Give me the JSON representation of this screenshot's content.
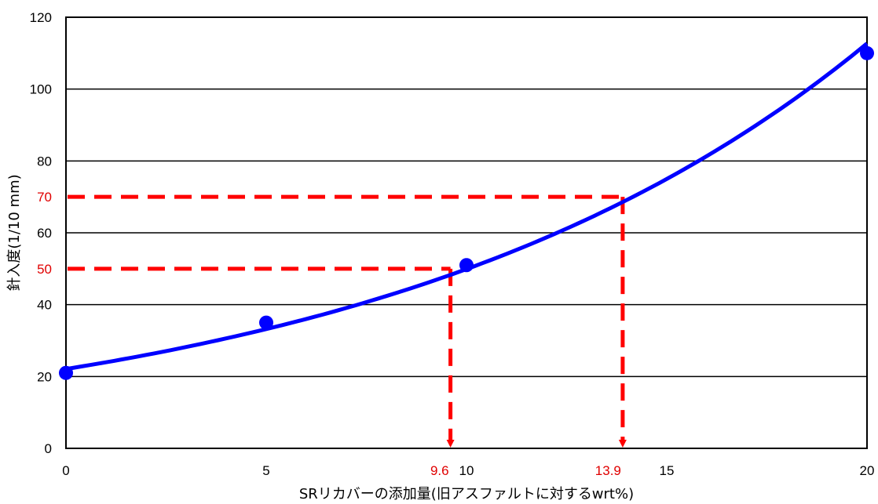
{
  "chart_data": {
    "type": "scatter",
    "title": "",
    "xlabel": "SRリカバーの添加量(旧アスファルトに対するwrt%)",
    "ylabel": "針入度(1/10 mm)",
    "xlim": [
      0,
      20
    ],
    "ylim": [
      0,
      120
    ],
    "x_ticks": [
      "0",
      "5",
      "10",
      "15",
      "20"
    ],
    "y_ticks": [
      "0",
      "20",
      "40",
      "60",
      "80",
      "100",
      "120"
    ],
    "grid": "horizontal",
    "series": [
      {
        "marker": "circle",
        "color": "#0000ff",
        "points": [
          {
            "x": 0,
            "y": 21
          },
          {
            "x": 5,
            "y": 35
          },
          {
            "x": 10,
            "y": 51
          },
          {
            "x": 20,
            "y": 110
          }
        ]
      }
    ],
    "trendline": {
      "type": "exponential",
      "color": "#0000ff"
    },
    "annotations": [
      {
        "y": 50,
        "x": 9.6,
        "y_label": "50",
        "x_label": "9.6",
        "color": "#ff0000",
        "style": "dashed-arrow"
      },
      {
        "y": 70,
        "x": 13.9,
        "y_label": "70",
        "x_label": "13.9",
        "color": "#ff0000",
        "style": "dashed-arrow"
      }
    ]
  }
}
